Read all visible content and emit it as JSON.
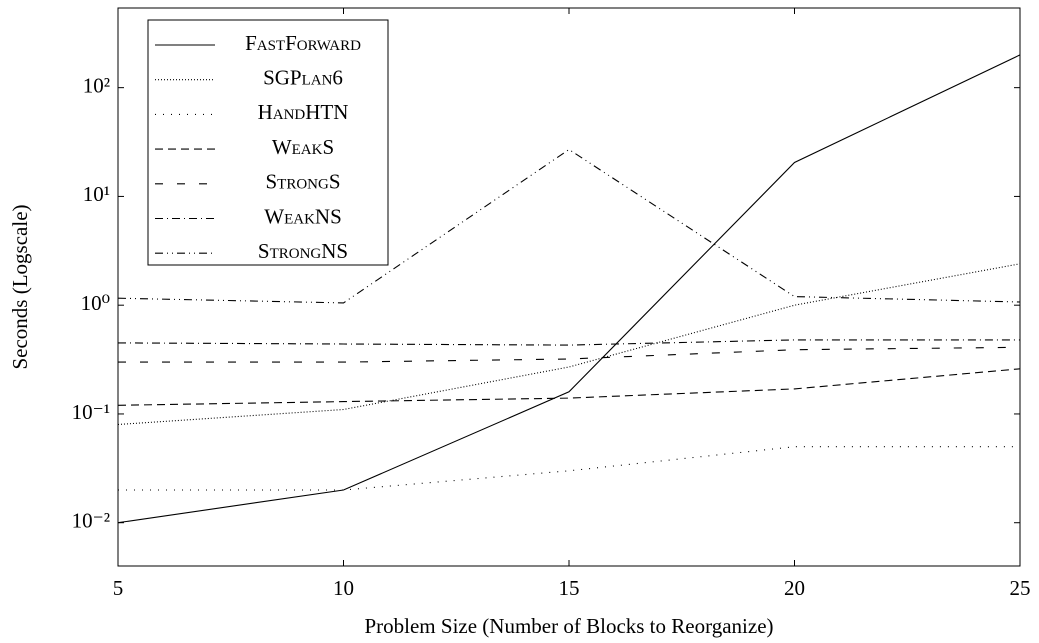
{
  "chart_data": {
    "type": "line",
    "xlabel": "Problem Size (Number of Blocks to Reorganize)",
    "ylabel": "Seconds (Logscale)",
    "log_y": true,
    "x": [
      5,
      10,
      15,
      20,
      25
    ],
    "xlim": [
      5,
      25
    ],
    "xticks": [
      5,
      10,
      15,
      20,
      25
    ],
    "ylim": [
      0.004,
      540
    ],
    "yticks": [
      {
        "value": 0.01,
        "label": "10⁻²"
      },
      {
        "value": 0.1,
        "label": "10⁻¹"
      },
      {
        "value": 1,
        "label": "10⁰"
      },
      {
        "value": 10,
        "label": "10¹"
      },
      {
        "value": 100,
        "label": "10²"
      }
    ],
    "legend": "upper left",
    "series": [
      {
        "name": "FastForward",
        "color": "#000000",
        "style": "solid",
        "values": [
          0.01,
          0.02,
          0.16,
          20.5,
          200
        ]
      },
      {
        "name": "SGPlan6",
        "color": "#000000",
        "style": "dotted",
        "values": [
          0.08,
          0.11,
          0.27,
          1.0,
          2.4
        ]
      },
      {
        "name": "HandHTN",
        "color": "#000000",
        "style": "loosely dotted",
        "values": [
          0.02,
          0.02,
          0.03,
          0.05,
          0.05
        ]
      },
      {
        "name": "WeakS",
        "color": "#000000",
        "style": "dashed",
        "values": [
          0.12,
          0.13,
          0.14,
          0.17,
          0.26
        ]
      },
      {
        "name": "StrongS",
        "color": "#000000",
        "style": "loosely dashed",
        "values": [
          0.3,
          0.3,
          0.32,
          0.39,
          0.41
        ]
      },
      {
        "name": "WeakNS",
        "color": "#000000",
        "style": "dashdotted",
        "values": [
          0.45,
          0.44,
          0.43,
          0.48,
          0.48
        ]
      },
      {
        "name": "StrongNS",
        "color": "#000000",
        "style": "dashdotdotted",
        "values": [
          1.16,
          1.05,
          27,
          1.2,
          1.07
        ]
      }
    ]
  }
}
